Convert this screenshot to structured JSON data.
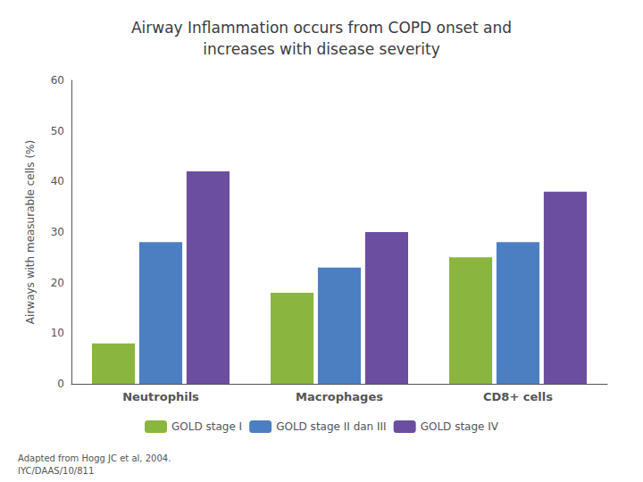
{
  "chart_data": {
    "type": "bar",
    "title": "Airway Inflammation occurs from COPD onset and\nincreases with disease severity",
    "y_label": "Airways with measurable cells (%)",
    "categories": [
      "Neutrophils",
      "Macrophages",
      "CD8+ cells"
    ],
    "series": [
      {
        "name": "GOLD stage I",
        "color": "#8ab63f",
        "values": [
          8,
          18,
          25
        ]
      },
      {
        "name": "GOLD stage II dan III",
        "color": "#4c7fc2",
        "values": [
          28,
          23,
          28
        ]
      },
      {
        "name": "GOLD stage IV",
        "color": "#6b4ea0",
        "values": [
          42,
          30,
          38
        ]
      }
    ],
    "ylim": [
      0,
      60
    ],
    "yticks": [
      0,
      10,
      20,
      30,
      40,
      50,
      60
    ],
    "grid": false,
    "legend": "bottom",
    "annotations": [
      "Adapted from Hogg JC et al, 2004.",
      "IYC/DAAS/10/811"
    ]
  }
}
